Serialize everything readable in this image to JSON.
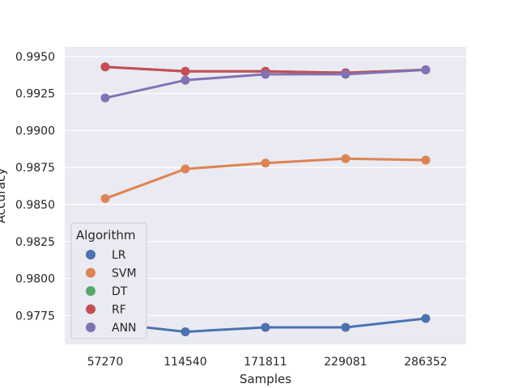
{
  "chart_data": {
    "type": "line",
    "title": "",
    "xlabel": "Samples",
    "ylabel": "Accuracy",
    "categories": [
      "57270",
      "114540",
      "171811",
      "229081",
      "286352"
    ],
    "ylim": [
      0.97555,
      0.99565
    ],
    "yticks": [
      "0.9775",
      "0.9800",
      "0.9825",
      "0.9850",
      "0.9875",
      "0.9900",
      "0.9925",
      "0.9950"
    ],
    "grid": true,
    "legend": {
      "title": "Algorithm",
      "placement": "lower-left"
    },
    "series": [
      {
        "name": "LR",
        "color": "#4c72b0",
        "values": [
          0.977,
          0.9764,
          0.9767,
          0.9767,
          0.9773
        ]
      },
      {
        "name": "SVM",
        "color": "#dd8452",
        "values": [
          0.9854,
          0.9874,
          0.9878,
          0.9881,
          0.988
        ]
      },
      {
        "name": "DT",
        "color": "#55a868",
        "values": [
          0.9943,
          0.994,
          0.994,
          0.9939,
          0.9941
        ]
      },
      {
        "name": "RF",
        "color": "#c44e52",
        "values": [
          0.9943,
          0.994,
          0.994,
          0.9939,
          0.9941
        ]
      },
      {
        "name": "ANN",
        "color": "#8172b3",
        "values": [
          0.9922,
          0.9934,
          0.9938,
          0.9938,
          0.9941
        ]
      }
    ]
  }
}
